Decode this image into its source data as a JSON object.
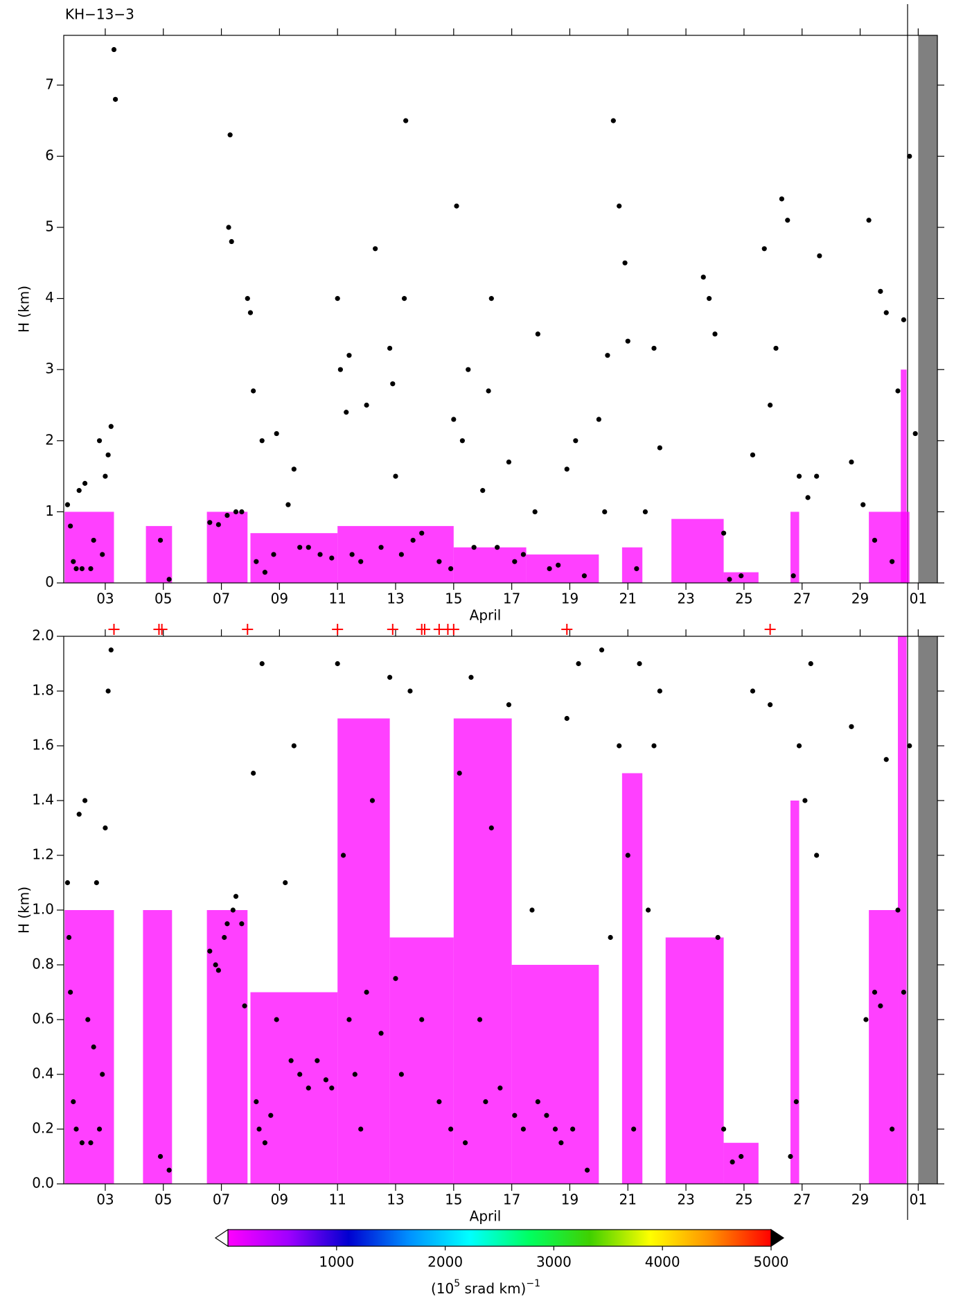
{
  "title": "KH−13−3",
  "chart_data": [
    {
      "type": "scatter",
      "ylabel": "H (km)",
      "xlabel": "April",
      "xlim": [
        1.57,
        31.66
      ],
      "ylim": [
        0,
        7.7
      ],
      "xticks": [
        {
          "value": 3,
          "label": "03"
        },
        {
          "value": 5,
          "label": "05"
        },
        {
          "value": 7,
          "label": "07"
        },
        {
          "value": 9,
          "label": "09"
        },
        11,
        13,
        15,
        17,
        19,
        21,
        23,
        25,
        27,
        29,
        {
          "value": 31,
          "label": "01"
        }
      ],
      "yticks": [
        0,
        1,
        2,
        3,
        4,
        5,
        6,
        7
      ],
      "point_color": "#000000",
      "shaded_color": "#ff00ff",
      "shaded": [
        [
          1.6,
          3.3,
          1.0
        ],
        [
          4.4,
          5.3,
          0.8
        ],
        [
          6.5,
          7.9,
          1.0
        ],
        [
          8.0,
          11.0,
          0.7
        ],
        [
          11.0,
          15.0,
          0.8
        ],
        [
          15.0,
          17.5,
          0.5
        ],
        [
          17.5,
          20.0,
          0.4
        ],
        [
          20.8,
          21.5,
          0.5
        ],
        [
          22.5,
          24.3,
          0.9
        ],
        [
          24.3,
          25.5,
          0.15
        ],
        [
          26.6,
          26.9,
          1.0
        ],
        [
          29.3,
          30.7,
          1.0
        ],
        [
          30.4,
          30.6,
          3.0
        ]
      ],
      "no_data": [
        31.0,
        31.66
      ],
      "no_data_color": "#808080",
      "x": [
        1.7,
        1.8,
        1.9,
        2.0,
        2.1,
        2.2,
        2.3,
        2.5,
        2.6,
        2.8,
        2.9,
        3.0,
        3.1,
        3.2,
        3.3,
        3.35,
        4.9,
        5.2,
        6.6,
        6.9,
        7.2,
        7.5,
        7.7,
        7.3,
        7.25,
        7.35,
        7.9,
        8.0,
        8.1,
        8.2,
        8.4,
        8.5,
        8.8,
        8.9,
        9.3,
        9.5,
        9.7,
        10.0,
        10.4,
        10.8,
        11.0,
        11.1,
        11.3,
        11.4,
        11.5,
        11.8,
        12.0,
        12.3,
        12.5,
        12.8,
        12.9,
        13.0,
        13.2,
        13.3,
        13.35,
        13.6,
        13.9,
        14.5,
        14.9,
        15.0,
        15.1,
        15.3,
        15.5,
        15.7,
        16.0,
        16.2,
        16.3,
        16.5,
        16.9,
        17.1,
        17.4,
        17.8,
        17.9,
        18.3,
        18.6,
        18.9,
        19.2,
        19.5,
        20.0,
        20.2,
        20.3,
        20.5,
        20.7,
        20.9,
        21.0,
        21.3,
        21.6,
        21.9,
        22.1,
        23.6,
        23.8,
        24.0,
        24.3,
        24.5,
        24.9,
        25.3,
        25.7,
        25.9,
        26.1,
        26.3,
        26.5,
        26.7,
        26.9,
        27.2,
        27.5,
        27.6,
        28.7,
        29.1,
        29.3,
        29.5,
        29.7,
        29.9,
        30.1,
        30.3,
        30.5,
        30.7,
        30.9
      ],
      "y": [
        1.1,
        0.8,
        0.3,
        0.2,
        1.3,
        0.2,
        1.4,
        0.2,
        0.6,
        2.0,
        0.4,
        1.5,
        1.8,
        2.2,
        7.5,
        6.8,
        0.6,
        0.05,
        0.85,
        0.82,
        0.95,
        1.0,
        1.0,
        6.3,
        5.0,
        4.8,
        4.0,
        3.8,
        2.7,
        0.3,
        2.0,
        0.15,
        0.4,
        2.1,
        1.1,
        1.6,
        0.5,
        0.5,
        0.4,
        0.35,
        4.0,
        3.0,
        2.4,
        3.2,
        0.4,
        0.3,
        2.5,
        4.7,
        0.5,
        3.3,
        2.8,
        1.5,
        0.4,
        4.0,
        6.5,
        0.6,
        0.7,
        0.3,
        0.2,
        2.3,
        5.3,
        2.0,
        3.0,
        0.5,
        1.3,
        2.7,
        4.0,
        0.5,
        1.7,
        0.3,
        0.4,
        1.0,
        3.5,
        0.2,
        0.25,
        1.6,
        2.0,
        0.1,
        2.3,
        1.0,
        3.2,
        6.5,
        5.3,
        4.5,
        3.4,
        0.2,
        1.0,
        3.3,
        1.9,
        4.3,
        4.0,
        3.5,
        0.7,
        0.05,
        0.1,
        1.8,
        4.7,
        2.5,
        3.3,
        5.4,
        5.1,
        0.1,
        1.5,
        1.2,
        1.5,
        4.6,
        1.7,
        1.1,
        5.1,
        0.6,
        4.1,
        3.8,
        0.3,
        2.7,
        3.7,
        6.0,
        2.1
      ]
    },
    {
      "type": "scatter",
      "ylabel": "H (km)",
      "xlabel": "April",
      "xlim": [
        1.57,
        31.66
      ],
      "ylim": [
        0,
        2
      ],
      "xticks": [
        {
          "value": 3,
          "label": "03"
        },
        {
          "value": 5,
          "label": "05"
        },
        {
          "value": 7,
          "label": "07"
        },
        {
          "value": 9,
          "label": "09"
        },
        11,
        13,
        15,
        17,
        19,
        21,
        23,
        25,
        27,
        29,
        {
          "value": 31,
          "label": "01"
        }
      ],
      "yticks": [
        {
          "value": 0,
          "label": "0.0"
        },
        0.2,
        0.4,
        0.6,
        0.8,
        {
          "value": 1,
          "label": "1.0"
        },
        1.2,
        1.4,
        1.6,
        1.8,
        {
          "value": 2,
          "label": "2.0"
        }
      ],
      "point_color": "#000000",
      "shaded_color": "#ff00ff",
      "shaded": [
        [
          1.6,
          3.3,
          1.0
        ],
        [
          4.3,
          5.3,
          1.0
        ],
        [
          6.5,
          7.9,
          1.0
        ],
        [
          8.0,
          11.0,
          0.7
        ],
        [
          11.0,
          12.8,
          1.7
        ],
        [
          12.8,
          15.0,
          0.9
        ],
        [
          15.0,
          17.0,
          1.7
        ],
        [
          17.0,
          20.0,
          0.8
        ],
        [
          20.8,
          21.5,
          1.5
        ],
        [
          22.3,
          24.3,
          0.9
        ],
        [
          24.3,
          25.5,
          0.15
        ],
        [
          26.6,
          26.9,
          1.4
        ],
        [
          29.3,
          30.3,
          1.0
        ],
        [
          30.3,
          30.6,
          2.0
        ]
      ],
      "no_data": [
        31.0,
        31.66
      ],
      "no_data_color": "#808080",
      "markers": {
        "color": "#ff0000",
        "x": [
          3.3,
          4.85,
          4.95,
          7.9,
          11.0,
          12.9,
          13.9,
          14.0,
          14.5,
          14.8,
          15.0,
          18.9,
          25.9
        ]
      },
      "x": [
        1.7,
        1.75,
        1.8,
        1.9,
        2.0,
        2.1,
        2.2,
        2.3,
        2.4,
        2.5,
        2.6,
        2.7,
        2.8,
        2.9,
        3.0,
        3.1,
        3.2,
        4.9,
        5.2,
        6.6,
        6.8,
        6.9,
        7.1,
        7.2,
        7.4,
        7.5,
        7.7,
        7.8,
        8.1,
        8.2,
        8.3,
        8.4,
        8.5,
        8.7,
        8.9,
        9.2,
        9.4,
        9.5,
        9.7,
        10.0,
        10.3,
        10.6,
        10.8,
        11.0,
        11.2,
        11.4,
        11.6,
        11.8,
        12.0,
        12.2,
        12.5,
        12.8,
        13.0,
        13.2,
        13.5,
        13.9,
        14.5,
        14.9,
        15.2,
        15.4,
        15.6,
        15.9,
        16.1,
        16.3,
        16.6,
        16.9,
        17.1,
        17.4,
        17.7,
        17.9,
        18.2,
        18.5,
        18.7,
        18.9,
        19.1,
        19.3,
        19.6,
        20.1,
        20.4,
        20.7,
        21.0,
        21.2,
        21.4,
        21.7,
        21.9,
        22.1,
        24.1,
        24.3,
        24.6,
        24.9,
        25.3,
        25.9,
        26.6,
        26.8,
        26.9,
        27.1,
        27.3,
        27.5,
        28.7,
        29.2,
        29.5,
        29.7,
        29.9,
        30.1,
        30.3,
        30.5,
        30.7
      ],
      "y": [
        1.1,
        0.9,
        0.7,
        0.3,
        0.2,
        1.35,
        0.15,
        1.4,
        0.6,
        0.15,
        0.5,
        1.1,
        0.2,
        0.4,
        1.3,
        1.8,
        1.95,
        0.1,
        0.05,
        0.85,
        0.8,
        0.78,
        0.9,
        0.95,
        1.0,
        1.05,
        0.95,
        0.65,
        1.5,
        0.3,
        0.2,
        1.9,
        0.15,
        0.25,
        0.6,
        1.1,
        0.45,
        1.6,
        0.4,
        0.35,
        0.45,
        0.38,
        0.35,
        1.9,
        1.2,
        0.6,
        0.4,
        0.2,
        0.7,
        1.4,
        0.55,
        1.85,
        0.75,
        0.4,
        1.8,
        0.6,
        0.3,
        0.2,
        1.5,
        0.15,
        1.85,
        0.6,
        0.3,
        1.3,
        0.35,
        1.75,
        0.25,
        0.2,
        1.0,
        0.3,
        0.25,
        0.2,
        0.15,
        1.7,
        0.2,
        1.9,
        0.05,
        1.95,
        0.9,
        1.6,
        1.2,
        0.2,
        1.9,
        1.0,
        1.6,
        1.8,
        0.9,
        0.2,
        0.08,
        0.1,
        1.8,
        1.75,
        0.1,
        0.3,
        1.6,
        1.4,
        1.9,
        1.2,
        1.67,
        0.6,
        0.7,
        0.65,
        1.55,
        0.2,
        1.0,
        0.7,
        1.6
      ]
    }
  ],
  "colorbar": {
    "clim": [
      0,
      5000
    ],
    "colors": [
      "#ff00ff",
      "#a000ff",
      "#0000d0",
      "#0090ff",
      "#00ffff",
      "#00ff60",
      "#40d000",
      "#ffff00",
      "#ff9000",
      "#ff0000"
    ],
    "ticks": [
      1000,
      2000,
      3000,
      4000,
      5000
    ],
    "label_base": "(10",
    "label_sup": "5",
    "label_mid": " srad km)",
    "label_sup2": "−1"
  }
}
